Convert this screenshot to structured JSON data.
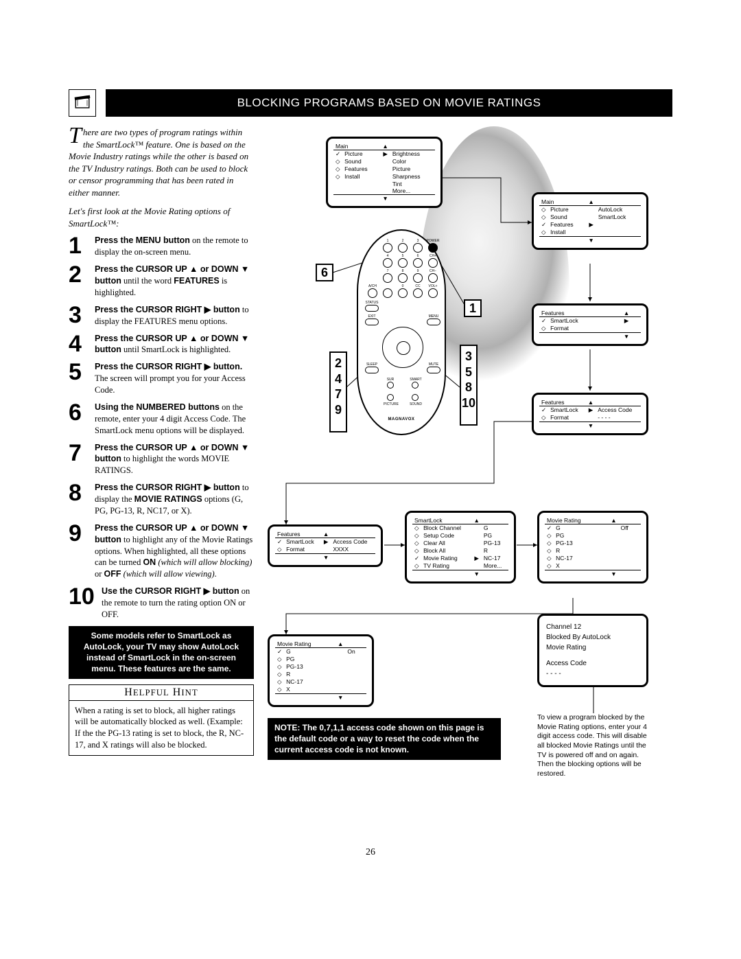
{
  "page_number": "26",
  "title": "BLOCKING PROGRAMS BASED ON MOVIE RATINGS",
  "intro": {
    "dropcap": "T",
    "text": "here are two types of program ratings within the SmartLock™ feature. One is based on the Movie Industry ratings while the other is based on the TV Industry ratings. Both can be used to block or censor programming that has been rated in either manner."
  },
  "sub_intro": "Let's first look at the Movie Rating options of SmartLock™:",
  "steps": [
    {
      "n": "1",
      "body": "<b>Press the MENU button</b> on the remote to display the on-screen menu."
    },
    {
      "n": "2",
      "body": "<b>Press the CURSOR UP ▲ or DOWN ▼ button</b> until the word <b>FEATURES</b> is highlighted."
    },
    {
      "n": "3",
      "body": "<b>Press the CURSOR RIGHT ▶ button</b> to display the FEATURES menu options."
    },
    {
      "n": "4",
      "body": "<b>Press the CURSOR UP ▲ or DOWN ▼ button</b> until SmartLock is highlighted."
    },
    {
      "n": "5",
      "body": "<b>Press the CURSOR RIGHT ▶ button.</b> The screen will prompt you for your Access Code."
    },
    {
      "n": "6",
      "body": "<b>Using the NUMBERED buttons</b> on the remote, enter your 4 digit Access Code. The SmartLock menu options will be displayed."
    },
    {
      "n": "7",
      "body": "<b>Press the CURSOR UP ▲ or DOWN ▼ button</b> to highlight the words MOVIE RATINGS."
    },
    {
      "n": "8",
      "body": "<b>Press the CURSOR RIGHT ▶ button</b> to display the <b>MOVIE RATINGS</b> options (G, PG, PG-13, R, NC17, or X)."
    },
    {
      "n": "9",
      "body": "<b>Press the CURSOR UP ▲ or DOWN ▼ button</b> to highlight any of the Movie Ratings options. When highlighted, all these options can be turned <b>ON</b> <i>(which will allow blocking)</i> or <b>OFF</b> <i>(which will allow viewing)</i>."
    },
    {
      "n": "10",
      "body": "<b>Use the CURSOR RIGHT ▶ button</b> on the remote to turn the rating option ON or OFF."
    }
  ],
  "smartlock_note": "Some models refer to SmartLock as AutoLock, your TV may show AutoLock instead of SmartLock in the on-screen menu. These features are the same.",
  "hint_header": "HELPFUL HINT",
  "hint_body": "When a rating is set to block, all higher ratings will be automatically blocked as well. (Example: If the the PG-13 rating is set to block, the R, NC-17, and X ratings will also be blocked.",
  "note_black": "NOTE: The 0,7,1,1 access code shown on this page is the default code or a way to reset the code when the current access code is not known.",
  "remote_brand": "MAGNAVOX",
  "callouts": {
    "single_left": "6",
    "single_right": "1",
    "col_left": [
      "2",
      "4",
      "7",
      "9"
    ],
    "col_right": [
      "3",
      "5",
      "8",
      "10"
    ]
  },
  "blocked_info": {
    "line1": "Channel 12",
    "line2": "Blocked By AutoLock",
    "line3": "Movie Rating",
    "line4": "Access Code",
    "line5": "- - - -"
  },
  "unlock_para": "To view a program blocked by the Movie Rating options, enter your 4 digit access code. This will disable all blocked Movie Ratings until the TV is powered off and on again. Then the blocking options will be restored.",
  "menus": {
    "m1": {
      "title": "Main",
      "rows": [
        [
          "✓",
          "Picture",
          "▶",
          "Brightness"
        ],
        [
          "◇",
          "Sound",
          "",
          "Color"
        ],
        [
          "◇",
          "Features",
          "",
          "Picture"
        ],
        [
          "◇",
          "Install",
          "",
          "Sharpness"
        ],
        [
          "",
          "",
          "",
          "Tint"
        ],
        [
          "",
          "",
          "",
          "More..."
        ]
      ]
    },
    "m2": {
      "title": "Main",
      "rows": [
        [
          "◇",
          "Picture",
          "",
          "AutoLock"
        ],
        [
          "◇",
          "Sound",
          "",
          "SmartLock"
        ],
        [
          "✓",
          "Features",
          "▶",
          ""
        ],
        [
          "◇",
          "Install",
          "",
          ""
        ]
      ]
    },
    "m3": {
      "title": "Features",
      "rows": [
        [
          "✓",
          "SmartLock",
          "▶",
          ""
        ],
        [
          "◇",
          "Format",
          "",
          ""
        ]
      ]
    },
    "m4": {
      "title": "Features",
      "rows": [
        [
          "✓",
          "SmartLock",
          "▶",
          "Access Code"
        ],
        [
          "◇",
          "Format",
          "",
          "- - - -"
        ]
      ]
    },
    "m5": {
      "title": "Features",
      "rows": [
        [
          "✓",
          "SmartLock",
          "▶",
          "Access Code"
        ],
        [
          "◇",
          "Format",
          "",
          "XXXX"
        ]
      ]
    },
    "m6": {
      "title": "SmartLock",
      "rows": [
        [
          "◇",
          "Block Channel",
          "",
          "G"
        ],
        [
          "◇",
          "Setup Code",
          "",
          "PG"
        ],
        [
          "◇",
          "Clear All",
          "",
          "PG-13"
        ],
        [
          "◇",
          "Block All",
          "",
          "R"
        ],
        [
          "✓",
          "Movie Rating",
          "▶",
          "NC-17"
        ],
        [
          "◇",
          "TV Rating",
          "",
          "More..."
        ]
      ]
    },
    "m7": {
      "title": "Movie Rating",
      "rows": [
        [
          "✓",
          "G",
          "",
          "Off"
        ],
        [
          "◇",
          "PG",
          "",
          ""
        ],
        [
          "◇",
          "PG-13",
          "",
          ""
        ],
        [
          "◇",
          "R",
          "",
          ""
        ],
        [
          "◇",
          "NC-17",
          "",
          ""
        ],
        [
          "◇",
          "X",
          "",
          ""
        ]
      ]
    },
    "m8": {
      "title": "Movie Rating",
      "rows": [
        [
          "✓",
          "G",
          "",
          "On"
        ],
        [
          "◇",
          "PG",
          "",
          ""
        ],
        [
          "◇",
          "PG-13",
          "",
          ""
        ],
        [
          "◇",
          "R",
          "",
          ""
        ],
        [
          "◇",
          "NC-17",
          "",
          ""
        ],
        [
          "◇",
          "X",
          "",
          ""
        ]
      ]
    }
  }
}
